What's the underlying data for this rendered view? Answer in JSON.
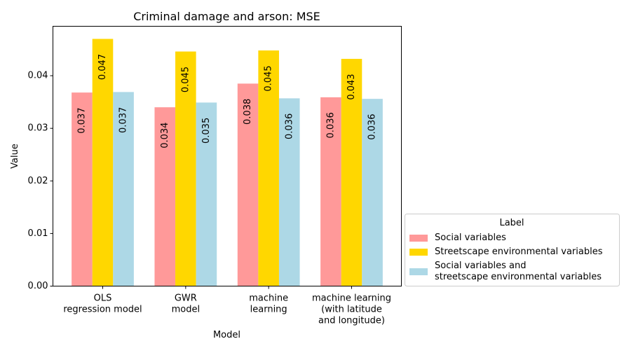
{
  "chart_data": {
    "type": "bar",
    "title": "Criminal damage and arson: MSE",
    "xlabel": "Model",
    "ylabel": "Value",
    "categories": [
      [
        "OLS",
        "regression model"
      ],
      [
        "GWR",
        "model"
      ],
      [
        "machine",
        "learning"
      ],
      [
        "machine learning",
        "(with latitude",
        "and longitude)"
      ]
    ],
    "series": [
      {
        "name": [
          "Social variables"
        ],
        "color": "#ff9999",
        "values": [
          0.0368,
          0.034,
          0.0385,
          0.0359
        ],
        "labels": [
          "0.037",
          "0.034",
          "0.038",
          "0.036"
        ]
      },
      {
        "name": [
          "Streetscape environmental variables"
        ],
        "color": "#ffd700",
        "values": [
          0.047,
          0.0446,
          0.0448,
          0.0432
        ],
        "labels": [
          "0.047",
          "0.045",
          "0.045",
          "0.043"
        ]
      },
      {
        "name": [
          "Social variables and",
          "streetscape environmental variables"
        ],
        "color": "#add8e6",
        "values": [
          0.0369,
          0.0349,
          0.0357,
          0.0356
        ],
        "labels": [
          "0.037",
          "0.035",
          "0.036",
          "0.036"
        ]
      }
    ],
    "ylim": [
      0,
      0.0494
    ],
    "yticks": [
      0.0,
      0.01,
      0.02,
      0.03,
      0.04
    ],
    "ytick_labels": [
      "0.00",
      "0.01",
      "0.02",
      "0.03",
      "0.04"
    ],
    "grid": false,
    "legend": {
      "title": "Label",
      "placement": "right, outside plot, bottom"
    }
  }
}
